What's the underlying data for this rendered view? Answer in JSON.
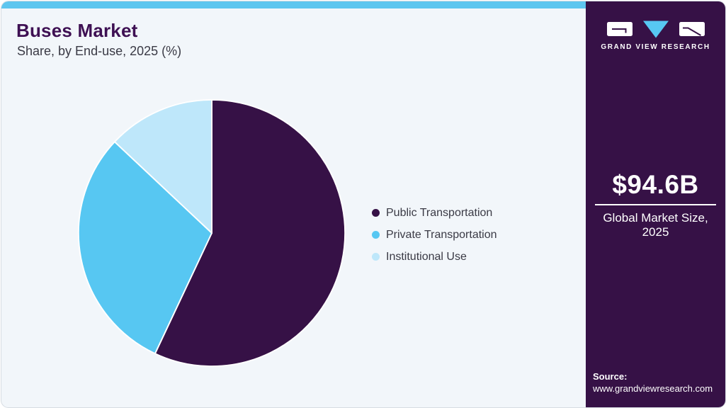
{
  "header": {
    "title": "Buses Market",
    "subtitle": "Share, by End-use, 2025 (%)"
  },
  "chart_data": {
    "type": "pie",
    "title": "Buses Market Share, by End-use, 2025 (%)",
    "unit": "percent",
    "segments": [
      {
        "label": "Public Transportation",
        "value": 57,
        "color": "#361146"
      },
      {
        "label": "Private Transportation",
        "value": 30,
        "color": "#57C7F2"
      },
      {
        "label": "Institutional Use",
        "value": 13,
        "color": "#BEE7FA"
      }
    ],
    "start_angle_deg": 0,
    "direction": "clockwise",
    "legend_position": "right",
    "data_labels": false
  },
  "sidebar": {
    "logo_text": "GRAND VIEW RESEARCH",
    "market_size_value": "$94.6B",
    "market_size_label": "Global Market Size, 2025",
    "source_label": "Source:",
    "source_url": "www.grandviewresearch.com"
  },
  "colors": {
    "accent_bar": "#5EC6EF",
    "sidebar_bg": "#361146",
    "card_bg": "#F2F6FA",
    "title_text": "#3E1053",
    "body_text": "#3A3A45",
    "slice_separator": "#FFFFFF"
  }
}
